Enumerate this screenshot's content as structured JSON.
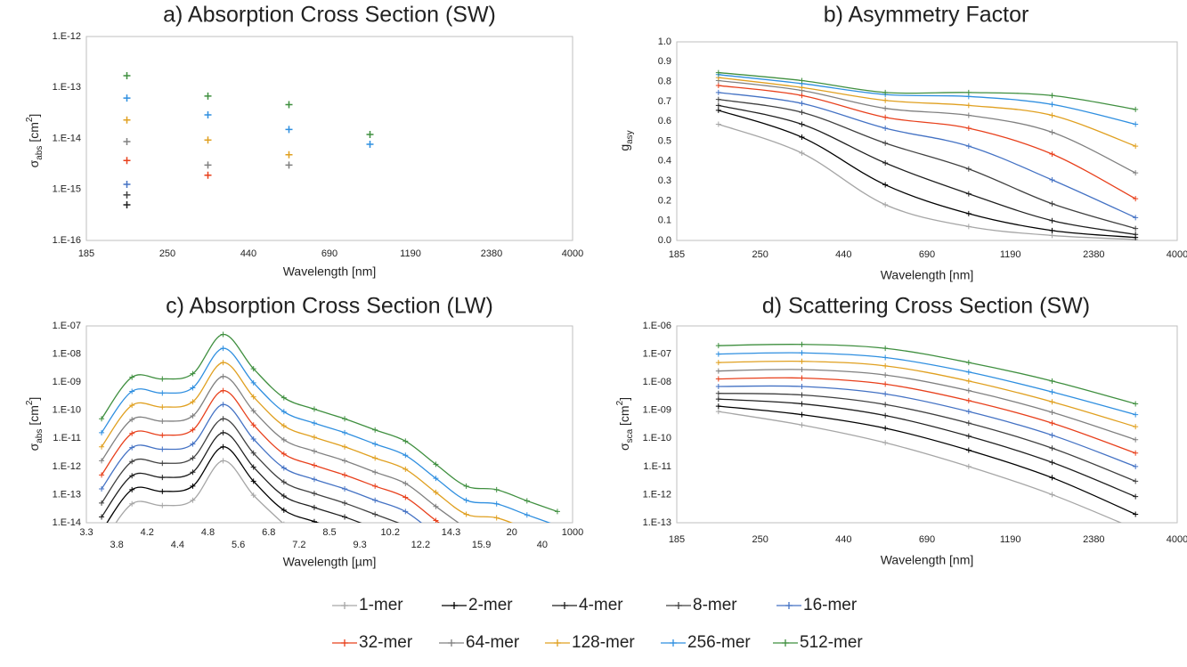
{
  "chart_data": [
    {
      "type": "scatter",
      "title": "a) Absorption Cross Section (SW)",
      "xlabel": "Wavelength [nm]",
      "ylabel": [
        {
          "text": "σ"
        },
        {
          "text": "abs",
          "shift": "sub"
        },
        {
          "text": " [cm"
        },
        {
          "text": "2",
          "shift": "sup"
        },
        {
          "text": "]"
        }
      ],
      "x": [
        0.5,
        1.5,
        2.5,
        3.5
      ],
      "xlim": [
        0,
        6
      ],
      "xticks": [
        {
          "value": 0,
          "label": "185"
        },
        {
          "value": 1,
          "label": "250"
        },
        {
          "value": 2,
          "label": "440"
        },
        {
          "value": 3,
          "label": "690"
        },
        {
          "value": 4,
          "label": "1190"
        },
        {
          "value": 5,
          "label": "2380"
        },
        {
          "value": 6,
          "label": "4000"
        }
      ],
      "ylim": [
        1e-16,
        1e-12
      ],
      "log": true,
      "yticks": [
        {
          "value": 1e-16,
          "label": "1.E-16"
        },
        {
          "value": 1e-15,
          "label": "1.E-15"
        },
        {
          "value": 1e-14,
          "label": "1.E-14"
        },
        {
          "value": 1e-13,
          "label": "1.E-13"
        },
        {
          "value": 1e-12,
          "label": "1.E-12"
        }
      ],
      "series": [
        {
          "values": [
            null,
            null,
            null,
            null
          ]
        },
        {
          "values": [
            null,
            null,
            null,
            null
          ]
        },
        {
          "values": [
            5e-16,
            null,
            null,
            null
          ]
        },
        {
          "values": [
            7.8e-16,
            null,
            null,
            null
          ]
        },
        {
          "values": [
            1.26e-15,
            null,
            null,
            null
          ]
        },
        {
          "values": [
            3.7e-15,
            1.9e-15,
            null,
            null
          ]
        },
        {
          "values": [
            8.7e-15,
            3e-15,
            3e-15,
            null
          ]
        },
        {
          "values": [
            2.3e-14,
            9.3e-15,
            4.8e-15,
            null
          ]
        },
        {
          "values": [
            6.2e-14,
            2.9e-14,
            1.5e-14,
            7.7e-15
          ]
        },
        {
          "values": [
            1.7e-13,
            6.8e-14,
            4.6e-14,
            1.2e-14
          ]
        }
      ]
    },
    {
      "type": "line",
      "title": "b) Asymmetry Factor",
      "xlabel": "Wavelength [nm]",
      "ylabel": [
        {
          "text": "g"
        },
        {
          "text": "asy",
          "shift": "sub"
        }
      ],
      "x": [
        0.5,
        1.5,
        2.5,
        3.5,
        4.5,
        5.5
      ],
      "xlim": [
        0,
        6
      ],
      "xticks": [
        {
          "value": 0,
          "label": "185"
        },
        {
          "value": 1,
          "label": "250"
        },
        {
          "value": 2,
          "label": "440"
        },
        {
          "value": 3,
          "label": "690"
        },
        {
          "value": 4,
          "label": "1190"
        },
        {
          "value": 5,
          "label": "2380"
        },
        {
          "value": 6,
          "label": "4000"
        }
      ],
      "ylim": [
        0,
        1
      ],
      "log": false,
      "yticks": [
        {
          "value": 0,
          "label": "0.0"
        },
        0.1,
        0.2,
        0.3,
        0.4,
        0.5,
        0.6,
        0.7,
        0.8,
        0.9,
        {
          "value": 1,
          "label": "1.0"
        }
      ],
      "series": [
        {
          "values": [
            0.585,
            0.44,
            0.18,
            0.07,
            0.025,
            0.005
          ]
        },
        {
          "values": [
            0.655,
            0.52,
            0.28,
            0.135,
            0.05,
            0.015
          ]
        },
        {
          "values": [
            0.68,
            0.585,
            0.39,
            0.235,
            0.1,
            0.03
          ]
        },
        {
          "values": [
            0.71,
            0.645,
            0.49,
            0.36,
            0.185,
            0.06
          ]
        },
        {
          "values": [
            0.745,
            0.69,
            0.565,
            0.475,
            0.305,
            0.115
          ]
        },
        {
          "values": [
            0.78,
            0.73,
            0.62,
            0.565,
            0.435,
            0.21
          ]
        },
        {
          "values": [
            0.805,
            0.755,
            0.665,
            0.63,
            0.545,
            0.34
          ]
        },
        {
          "values": [
            0.82,
            0.77,
            0.705,
            0.68,
            0.63,
            0.475
          ]
        },
        {
          "values": [
            0.835,
            0.79,
            0.735,
            0.725,
            0.685,
            0.585
          ]
        },
        {
          "values": [
            0.845,
            0.805,
            0.745,
            0.745,
            0.73,
            0.66
          ]
        }
      ]
    },
    {
      "type": "line",
      "title": "c) Absorption Cross Section (LW)",
      "xlabel": "Wavelength [µm]",
      "ylabel": [
        {
          "text": "σ"
        },
        {
          "text": "abs",
          "shift": "sub"
        },
        {
          "text": " [cm"
        },
        {
          "text": "2",
          "shift": "sup"
        },
        {
          "text": "]"
        }
      ],
      "x": [
        0.5,
        1.5,
        2.5,
        3.5,
        4.5,
        5.5,
        6.5,
        7.5,
        8.5,
        9.5,
        10.5,
        11.5,
        12.5,
        13.5,
        14.5,
        15.5
      ],
      "xlim": [
        0,
        16
      ],
      "xticks": [
        {
          "value": 0,
          "label": "3.3"
        },
        {
          "value": 1,
          "label": "3.8"
        },
        {
          "value": 2,
          "label": "4.2"
        },
        {
          "value": 3,
          "label": "4.4"
        },
        {
          "value": 4,
          "label": "4.8"
        },
        {
          "value": 5,
          "label": "5.6"
        },
        {
          "value": 6,
          "label": "6.8"
        },
        {
          "value": 7,
          "label": "7.2"
        },
        {
          "value": 8,
          "label": "8.5"
        },
        {
          "value": 9,
          "label": "9.3"
        },
        {
          "value": 10,
          "label": "10.2"
        },
        {
          "value": 11,
          "label": "12.2"
        },
        {
          "value": 12,
          "label": "14.3"
        },
        {
          "value": 13,
          "label": "15.9"
        },
        {
          "value": 14,
          "label": "20"
        },
        {
          "value": 15,
          "label": "40"
        },
        {
          "value": 16,
          "label": "1000"
        }
      ],
      "ylim": [
        1e-14,
        1e-07
      ],
      "log": true,
      "yticks": [
        {
          "value": 1e-14,
          "label": "1.E-14"
        },
        {
          "value": 1e-13,
          "label": "1.E-13"
        },
        {
          "value": 1e-12,
          "label": "1.E-12"
        },
        {
          "value": 1e-11,
          "label": "1.E-11"
        },
        {
          "value": 1e-10,
          "label": "1.E-10"
        },
        {
          "value": 1e-09,
          "label": "1.E-09"
        },
        {
          "value": 1e-08,
          "label": "1.E-08"
        },
        {
          "value": 1e-07,
          "label": "1.E-07"
        }
      ],
      "series": [
        {
          "values": [
            1.6e-15,
            4.7e-14,
            4.1e-14,
            6.3e-14,
            1.6e-12,
            9.5e-14,
            8.9e-15,
            null,
            null,
            null,
            null,
            null,
            null,
            null,
            null,
            null
          ]
        },
        {
          "values": [
            5e-15,
            1.5e-13,
            1.3e-13,
            2e-13,
            5e-12,
            3e-13,
            2.8e-14,
            1.1e-14,
            5e-15,
            null,
            null,
            null,
            null,
            null,
            null,
            null
          ]
        },
        {
          "values": [
            1.6e-14,
            4.7e-13,
            4.1e-13,
            6.3e-13,
            1.6e-11,
            9.5e-13,
            8.9e-14,
            3.5e-14,
            1.6e-14,
            6.3e-15,
            null,
            null,
            null,
            null,
            null,
            null
          ]
        },
        {
          "values": [
            5e-14,
            1.5e-12,
            1.3e-12,
            2e-12,
            5e-11,
            3e-12,
            2.8e-13,
            1.1e-13,
            5e-14,
            2e-14,
            8e-15,
            null,
            null,
            null,
            null,
            null
          ]
        },
        {
          "values": [
            1.6e-13,
            4.7e-12,
            4.1e-12,
            6.3e-12,
            1.6e-10,
            9.5e-12,
            8.9e-13,
            3.5e-13,
            1.6e-13,
            6.3e-14,
            2.5e-14,
            3.8e-15,
            null,
            null,
            null,
            null
          ]
        },
        {
          "values": [
            5e-13,
            1.5e-11,
            1.3e-11,
            2e-11,
            5e-10,
            3e-11,
            2.8e-12,
            1.1e-12,
            5e-13,
            2e-13,
            8e-14,
            1.2e-14,
            2e-15,
            null,
            null,
            null
          ]
        },
        {
          "values": [
            1.6e-12,
            4.7e-11,
            4.1e-11,
            6.3e-11,
            1.6e-09,
            9.5e-11,
            8.9e-12,
            3.5e-12,
            1.6e-12,
            6.3e-13,
            2.5e-13,
            3.8e-14,
            6.3e-15,
            null,
            null,
            null
          ]
        },
        {
          "values": [
            5e-12,
            1.5e-10,
            1.3e-10,
            2e-10,
            5e-09,
            3e-10,
            2.8e-11,
            1.1e-11,
            5e-12,
            2e-12,
            8e-13,
            1.2e-13,
            2e-14,
            1.5e-14,
            6e-15,
            null
          ]
        },
        {
          "values": [
            1.6e-11,
            4.7e-10,
            4.1e-10,
            6.3e-10,
            1.6e-08,
            9.5e-10,
            8.9e-11,
            3.5e-11,
            1.6e-11,
            6.3e-12,
            2.5e-12,
            3.8e-13,
            6.3e-14,
            4.7e-14,
            1.9e-14,
            7.9e-15
          ]
        },
        {
          "values": [
            5e-11,
            1.5e-09,
            1.3e-09,
            2e-09,
            5e-08,
            3e-09,
            2.8e-10,
            1.1e-10,
            5e-11,
            2e-11,
            8e-12,
            1.2e-12,
            2e-13,
            1.5e-13,
            6e-14,
            2.5e-14
          ]
        }
      ]
    },
    {
      "type": "line",
      "title": "d) Scattering Cross Section (SW)",
      "xlabel": "Wavelength [nm]",
      "ylabel": [
        {
          "text": "σ"
        },
        {
          "text": "sca",
          "shift": "sub"
        },
        {
          "text": " [cm"
        },
        {
          "text": "2",
          "shift": "sup"
        },
        {
          "text": "]"
        }
      ],
      "x": [
        0.5,
        1.5,
        2.5,
        3.5,
        4.5,
        5.5
      ],
      "xlim": [
        0,
        6
      ],
      "xticks": [
        {
          "value": 0,
          "label": "185"
        },
        {
          "value": 1,
          "label": "250"
        },
        {
          "value": 2,
          "label": "440"
        },
        {
          "value": 3,
          "label": "690"
        },
        {
          "value": 4,
          "label": "1190"
        },
        {
          "value": 5,
          "label": "2380"
        },
        {
          "value": 6,
          "label": "4000"
        }
      ],
      "ylim": [
        1e-13,
        1e-06
      ],
      "log": true,
      "yticks": [
        {
          "value": 1e-13,
          "label": "1.E-13"
        },
        {
          "value": 1e-12,
          "label": "1.E-12"
        },
        {
          "value": 1e-11,
          "label": "1.E-11"
        },
        {
          "value": 1e-10,
          "label": "1.E-10"
        },
        {
          "value": 1e-09,
          "label": "1.E-09"
        },
        {
          "value": 1e-08,
          "label": "1.E-08"
        },
        {
          "value": 1e-07,
          "label": "1.E-07"
        },
        {
          "value": 1e-06,
          "label": "1.E-06"
        }
      ],
      "series": [
        {
          "values": [
            9e-10,
            3e-10,
            7e-11,
            1e-11,
            1e-12,
            6e-14
          ]
        },
        {
          "values": [
            1.4e-09,
            7e-10,
            2.3e-10,
            3.8e-11,
            4e-12,
            2e-13
          ]
        },
        {
          "values": [
            2.5e-09,
            1.7e-09,
            6.5e-10,
            1.2e-10,
            1.4e-11,
            8.5e-13
          ]
        },
        {
          "values": [
            4e-09,
            3.5e-09,
            1.6e-09,
            3.5e-10,
            4.5e-11,
            3e-12
          ]
        },
        {
          "values": [
            7e-09,
            7e-09,
            3.8e-09,
            9e-10,
            1.3e-10,
            1e-11
          ]
        },
        {
          "values": [
            1.3e-08,
            1.4e-08,
            8.5e-09,
            2.2e-09,
            3.5e-10,
            3e-11
          ]
        },
        {
          "values": [
            2.5e-08,
            2.8e-08,
            1.8e-08,
            5e-09,
            8.5e-10,
            9e-11
          ]
        },
        {
          "values": [
            5e-08,
            5.5e-08,
            3.8e-08,
            1.1e-08,
            2e-09,
            2.6e-10
          ]
        },
        {
          "values": [
            1e-07,
            1.1e-07,
            7.5e-08,
            2.3e-08,
            4.5e-09,
            7e-10
          ]
        },
        {
          "values": [
            2e-07,
            2.2e-07,
            1.6e-07,
            5e-08,
            1.1e-08,
            1.7e-09
          ]
        }
      ]
    }
  ],
  "legend": [
    {
      "name": "1-mer",
      "color": "#a6a6a6"
    },
    {
      "name": "2-mer",
      "color": "#000000"
    },
    {
      "name": "4-mer",
      "color": "#1f1f1f"
    },
    {
      "name": "8-mer",
      "color": "#404040"
    },
    {
      "name": "16-mer",
      "color": "#4472c4"
    },
    {
      "name": "32-mer",
      "color": "#e8401c"
    },
    {
      "name": "64-mer",
      "color": "#808080"
    },
    {
      "name": "128-mer",
      "color": "#e0a020"
    },
    {
      "name": "256-mer",
      "color": "#2f8fe0"
    },
    {
      "name": "512-mer",
      "color": "#3f8f3f"
    }
  ]
}
